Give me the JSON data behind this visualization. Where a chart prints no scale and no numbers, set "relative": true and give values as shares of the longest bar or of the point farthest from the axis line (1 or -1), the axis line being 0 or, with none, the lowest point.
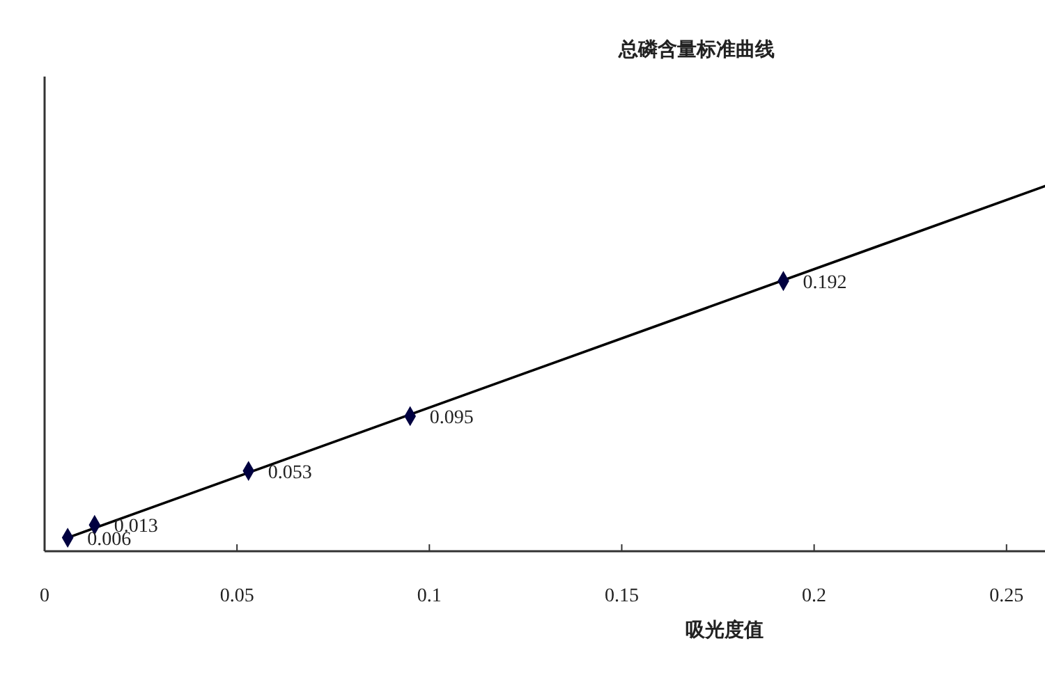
{
  "chart_data": {
    "type": "scatter",
    "title": "总磷含量标准曲线",
    "xlabel": "吸光度值",
    "relative": true,
    "xlim": [
      0,
      0.26
    ],
    "xticks": [
      0,
      0.05,
      0.1,
      0.15,
      0.2,
      0.25
    ],
    "grid": false,
    "series": [
      {
        "color": "#000040",
        "marker": "diamond",
        "x": [
          0.006,
          0.013,
          0.053,
          0.095,
          0.192
        ],
        "values": [
          0.037,
          0.072,
          0.22,
          0.37,
          0.74
        ]
      },
      {
        "type": "line",
        "color": "#000000",
        "x": [
          0.006,
          0.26
        ],
        "values": [
          0.037,
          1
        ],
        "line_style": "solid"
      }
    ],
    "annotations": [
      {
        "text": "0.006",
        "x": 0.006,
        "y": 0.037
      },
      {
        "text": "0.013",
        "x": 0.013,
        "y": 0.072
      },
      {
        "text": "0.053",
        "x": 0.053,
        "y": 0.22
      },
      {
        "text": "0.095",
        "x": 0.095,
        "y": 0.37
      },
      {
        "text": "0.192",
        "x": 0.192,
        "y": 0.74
      }
    ]
  }
}
